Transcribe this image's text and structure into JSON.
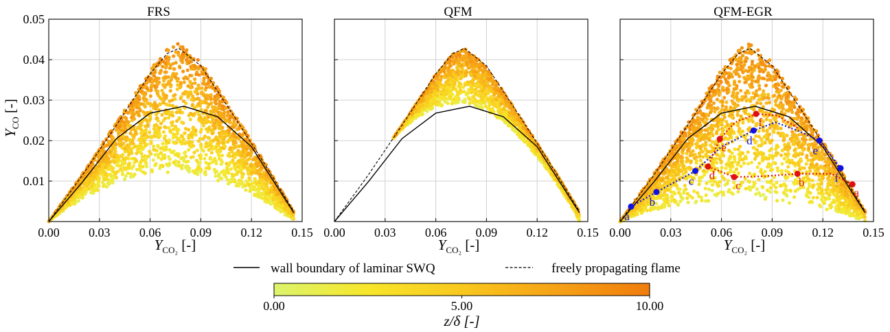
{
  "chart_data": [
    {
      "type": "scatter",
      "title": "FRS",
      "xlabel": "Y_CO2 [-]",
      "ylabel": "Y_CO [-]",
      "xlim": [
        0,
        0.15
      ],
      "ylim": [
        0,
        0.05
      ],
      "xticks": [
        "0.00",
        "0.03",
        "0.06",
        "0.09",
        "0.12",
        "0.15"
      ],
      "yticks": [
        "0.01",
        "0.02",
        "0.03",
        "0.04",
        "0.05"
      ],
      "cloud": {
        "description_free": true,
        "lower_y_at_mid": 0.012,
        "upper_y_peak": 0.044,
        "peak_x": 0.075,
        "x_end": 0.145
      },
      "series": [
        {
          "name": "wall boundary of laminar SWQ",
          "style": "solid",
          "x": [
            0,
            0.02,
            0.04,
            0.06,
            0.08,
            0.1,
            0.12,
            0.145
          ],
          "y": [
            0,
            0.0098,
            0.0205,
            0.0268,
            0.0285,
            0.0259,
            0.0185,
            0.0022
          ]
        },
        {
          "name": "freely propagating flame",
          "style": "dashed",
          "x": [
            0,
            0.02,
            0.04,
            0.06,
            0.07,
            0.077,
            0.09,
            0.11,
            0.13,
            0.145
          ],
          "y": [
            0,
            0.0115,
            0.0238,
            0.0365,
            0.0415,
            0.0428,
            0.0385,
            0.0258,
            0.0128,
            0.0025
          ]
        }
      ]
    },
    {
      "type": "scatter",
      "title": "QFM",
      "xlabel": "Y_CO2 [-]",
      "ylabel": "",
      "xlim": [
        0,
        0.15
      ],
      "ylim": [
        0,
        0.05
      ],
      "xticks": [
        "0.00",
        "0.03",
        "0.06",
        "0.09",
        "0.12",
        "0.15"
      ],
      "cloud": {
        "lower_y_at_mid": 0.029,
        "upper_y_peak": 0.043,
        "peak_x": 0.075,
        "x_end": 0.145
      },
      "series": [
        {
          "name": "wall boundary of laminar SWQ",
          "style": "solid",
          "x": [
            0,
            0.02,
            0.04,
            0.06,
            0.08,
            0.1,
            0.12,
            0.145
          ],
          "y": [
            0,
            0.0098,
            0.0205,
            0.0268,
            0.0285,
            0.0259,
            0.0185,
            0.0022
          ]
        },
        {
          "name": "freely propagating flame",
          "style": "dashed",
          "x": [
            0,
            0.02,
            0.04,
            0.06,
            0.07,
            0.077,
            0.09,
            0.11,
            0.13,
            0.145
          ],
          "y": [
            0,
            0.0115,
            0.0238,
            0.0365,
            0.0415,
            0.0428,
            0.0385,
            0.0258,
            0.0128,
            0.0025
          ]
        }
      ]
    },
    {
      "type": "scatter",
      "title": "QFM-EGR",
      "xlabel": "Y_CO2 [-]",
      "ylabel": "",
      "xlim": [
        0,
        0.15
      ],
      "ylim": [
        0,
        0.05
      ],
      "xticks": [
        "0.00",
        "0.03",
        "0.06",
        "0.09",
        "0.12",
        "0.15"
      ],
      "cloud": {
        "lower_y_at_mid": 0.006,
        "upper_y_peak": 0.044,
        "peak_x": 0.075,
        "x_end": 0.145
      },
      "series": [
        {
          "name": "wall boundary of laminar SWQ",
          "style": "solid",
          "x": [
            0,
            0.02,
            0.04,
            0.06,
            0.08,
            0.1,
            0.12,
            0.145
          ],
          "y": [
            0,
            0.0098,
            0.0205,
            0.0268,
            0.0285,
            0.0259,
            0.0185,
            0.0022
          ]
        },
        {
          "name": "freely propagating flame",
          "style": "dashed",
          "x": [
            0,
            0.02,
            0.04,
            0.06,
            0.07,
            0.077,
            0.09,
            0.11,
            0.13,
            0.145
          ],
          "y": [
            0,
            0.0115,
            0.0238,
            0.0365,
            0.0415,
            0.0428,
            0.0385,
            0.0258,
            0.0128,
            0.0025
          ]
        }
      ],
      "paths": [
        {
          "name": "blue",
          "color": "#1010e0",
          "points": [
            {
              "label": "a",
              "x": 0.0065,
              "y": 0.0037
            },
            {
              "label": "b",
              "x": 0.0215,
              "y": 0.0073
            },
            {
              "label": "c",
              "x": 0.0445,
              "y": 0.0125
            },
            {
              "label": "d",
              "x": 0.079,
              "y": 0.0225
            },
            {
              "label": "e",
              "x": 0.118,
              "y": 0.02
            },
            {
              "label": "f",
              "x": 0.1305,
              "y": 0.0132
            }
          ],
          "dotted_via": [
            [
              0.0065,
              0.0037
            ],
            [
              0.0215,
              0.0073
            ],
            [
              0.0445,
              0.0125
            ],
            [
              0.06,
              0.0185
            ],
            [
              0.079,
              0.0225
            ],
            [
              0.092,
              0.0245
            ],
            [
              0.105,
              0.0225
            ],
            [
              0.118,
              0.02
            ],
            [
              0.1305,
              0.0132
            ]
          ]
        },
        {
          "name": "red",
          "color": "#e01010",
          "points": [
            {
              "label": "a",
              "x": 0.1375,
              "y": 0.0092
            },
            {
              "label": "b",
              "x": 0.105,
              "y": 0.0118
            },
            {
              "label": "c",
              "x": 0.0675,
              "y": 0.011
            },
            {
              "label": "d",
              "x": 0.052,
              "y": 0.0136
            },
            {
              "label": "e",
              "x": 0.059,
              "y": 0.0204
            },
            {
              "label": "f",
              "x": 0.0805,
              "y": 0.0266
            }
          ],
          "dotted_via": [
            [
              0.1375,
              0.0092
            ],
            [
              0.125,
              0.0118
            ],
            [
              0.105,
              0.0118
            ],
            [
              0.085,
              0.0112
            ],
            [
              0.0675,
              0.011
            ],
            [
              0.052,
              0.0136
            ],
            [
              0.059,
              0.0204
            ],
            [
              0.068,
              0.0245
            ],
            [
              0.0805,
              0.0266
            ],
            [
              0.093,
              0.0262
            ],
            [
              0.105,
              0.0232
            ]
          ]
        }
      ]
    }
  ],
  "legend": {
    "solid_label": "wall boundary of laminar SWQ",
    "dashed_label": "freely propagating flame"
  },
  "colorbar": {
    "ticks": [
      "0.00",
      "5.00",
      "10.00"
    ],
    "min": 0,
    "max": 10,
    "label": "z/δ [-]",
    "colors": [
      "#dcf46c",
      "#f7e62a",
      "#f9c81e",
      "#f59a14",
      "#f07c0c"
    ]
  }
}
